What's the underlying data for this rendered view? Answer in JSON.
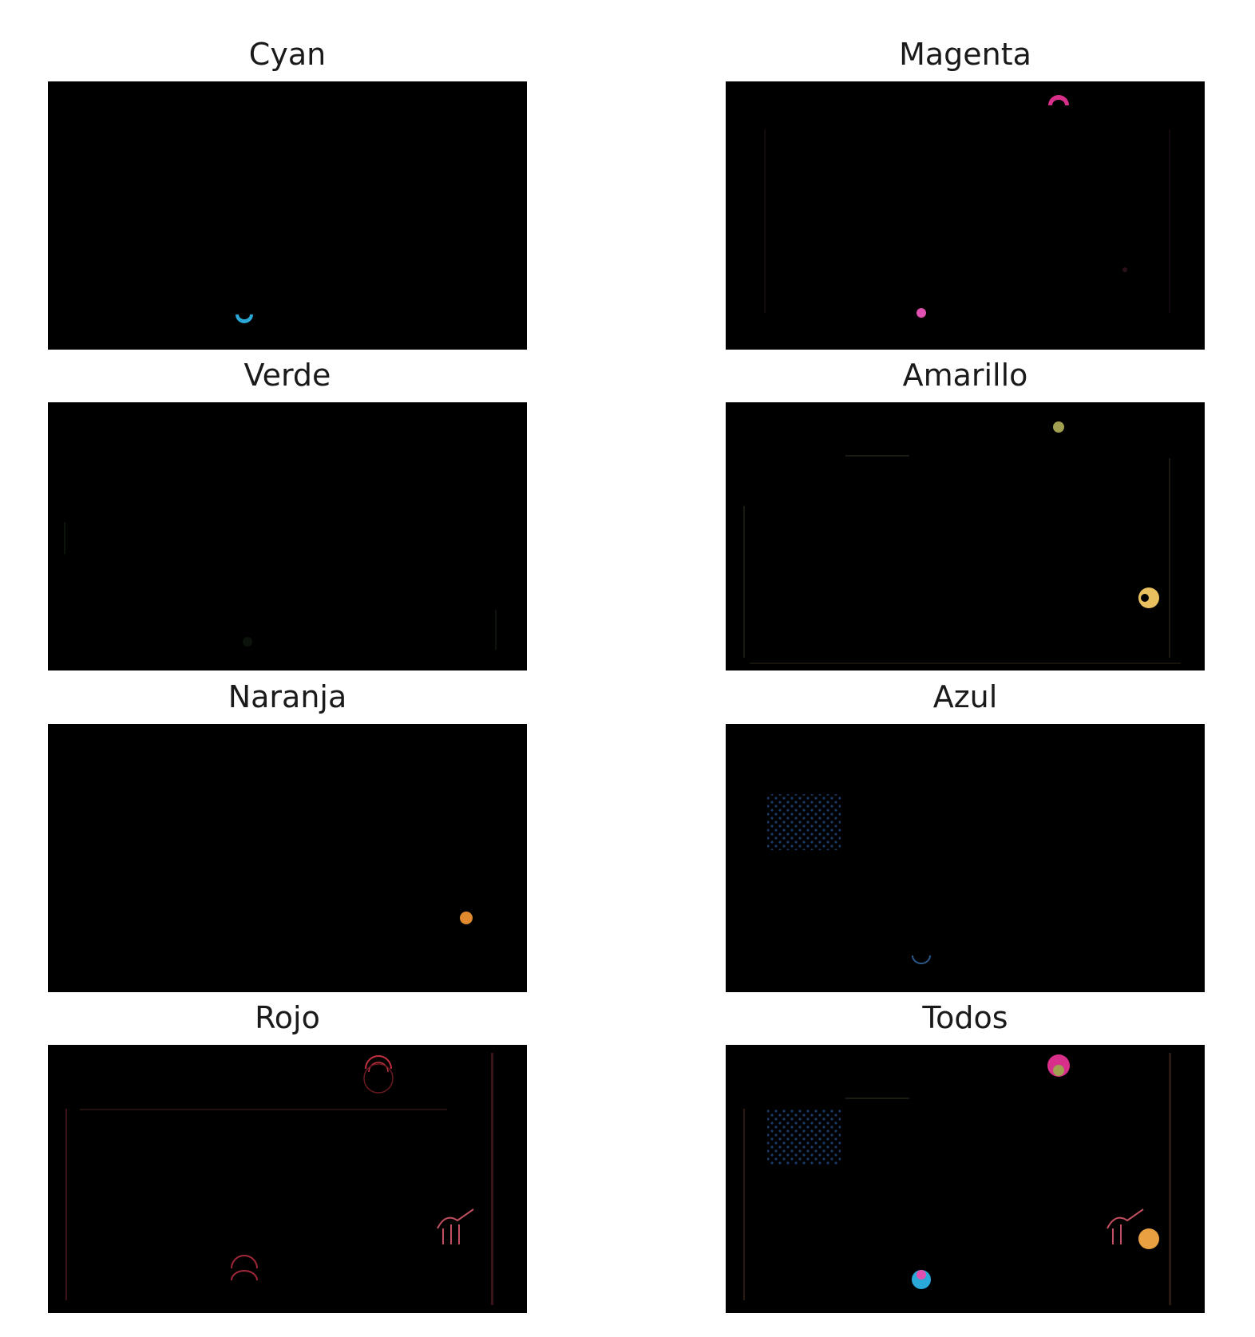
{
  "figure": {
    "panels": [
      {
        "id": "cyan",
        "title": "Cyan"
      },
      {
        "id": "magenta",
        "title": "Magenta"
      },
      {
        "id": "verde",
        "title": "Verde"
      },
      {
        "id": "amarillo",
        "title": "Amarillo"
      },
      {
        "id": "naranja",
        "title": "Naranja"
      },
      {
        "id": "azul",
        "title": "Azul"
      },
      {
        "id": "rojo",
        "title": "Rojo"
      },
      {
        "id": "todos",
        "title": "Todos"
      }
    ]
  },
  "colors": {
    "cyan": "#2aa8d8",
    "magenta": "#d8308a",
    "magenta_light": "#e050b0",
    "amarillo": "#e8c060",
    "amarillo_dim": "#a0a050",
    "naranja": "#e08a30",
    "azul_dim": "#1a3a6a",
    "rojo": "#c03040",
    "rojo_dim": "#6a1a20",
    "panel_bg": "#000000"
  }
}
